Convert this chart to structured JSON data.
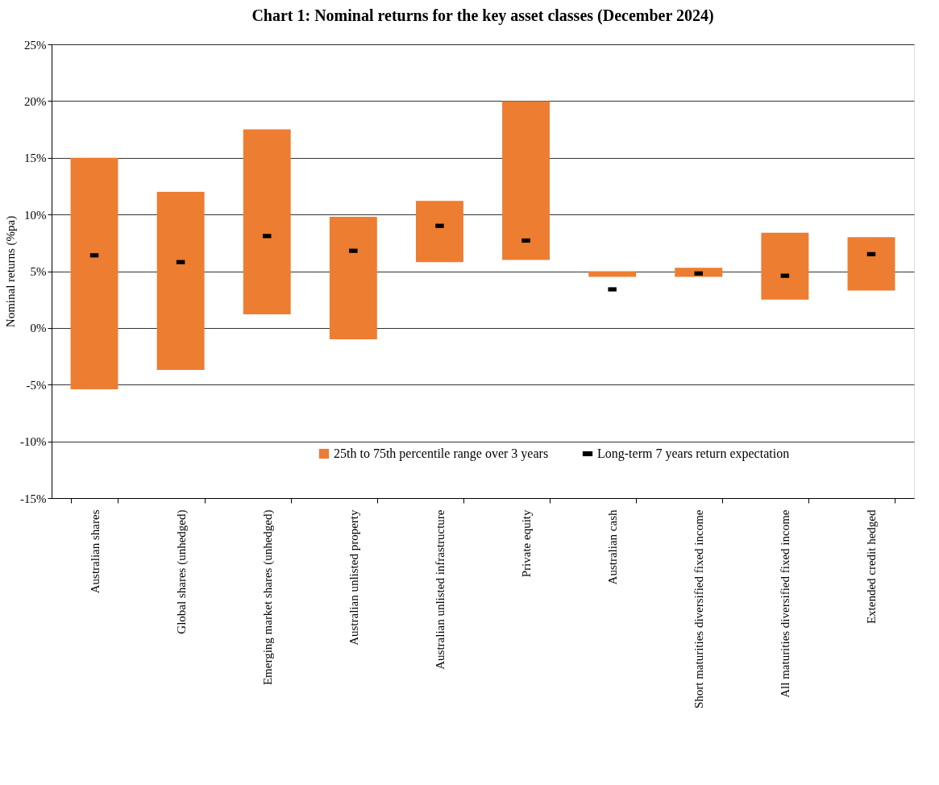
{
  "chart_data": {
    "type": "bar",
    "title": "Chart 1: Nominal returns for the key asset classes (December 2024)",
    "ylabel": "Nominal returns (%pa)",
    "categories": [
      "Australian shares",
      "Global shares (unhedged)",
      "Emerging market shares (unhedged)",
      "Australian unlisted property",
      "Australian unlisted infrastructure",
      "Private equity",
      "Australian cash",
      "Short maturities diversified fixed income",
      "All maturities diversified fixed income",
      "Extended credit hedged"
    ],
    "series": [
      {
        "name": "25th to 75th percentile range over 3 years",
        "type": "bar",
        "base": [
          -5.4,
          -3.7,
          1.2,
          -1.0,
          5.8,
          6.0,
          4.5,
          4.5,
          2.5,
          3.3
        ],
        "color": "#ed7d31",
        "values": [
          20.4,
          15.7,
          16.3,
          10.8,
          5.4,
          14.0,
          0.5,
          0.8,
          5.9,
          4.7
        ]
      },
      {
        "name": "Long-term 7 years return expectation",
        "type": "scatter",
        "color": "#000000",
        "values": [
          6.4,
          5.8,
          8.1,
          6.8,
          9.0,
          7.7,
          3.4,
          4.8,
          4.6,
          6.5
        ]
      }
    ],
    "ylim": [
      -15,
      25
    ],
    "yticks": [
      {
        "value": -15,
        "label": "-15%"
      },
      {
        "value": -10,
        "label": "-10%"
      },
      {
        "value": -5,
        "label": "-5%"
      },
      {
        "value": 0,
        "label": "0%"
      },
      {
        "value": 5,
        "label": "5%"
      },
      {
        "value": 10,
        "label": "10%"
      },
      {
        "value": 15,
        "label": "15%"
      },
      {
        "value": 20,
        "label": "20%"
      },
      {
        "value": 25,
        "label": "25%"
      }
    ],
    "grid": "y",
    "legend": "bottom"
  }
}
